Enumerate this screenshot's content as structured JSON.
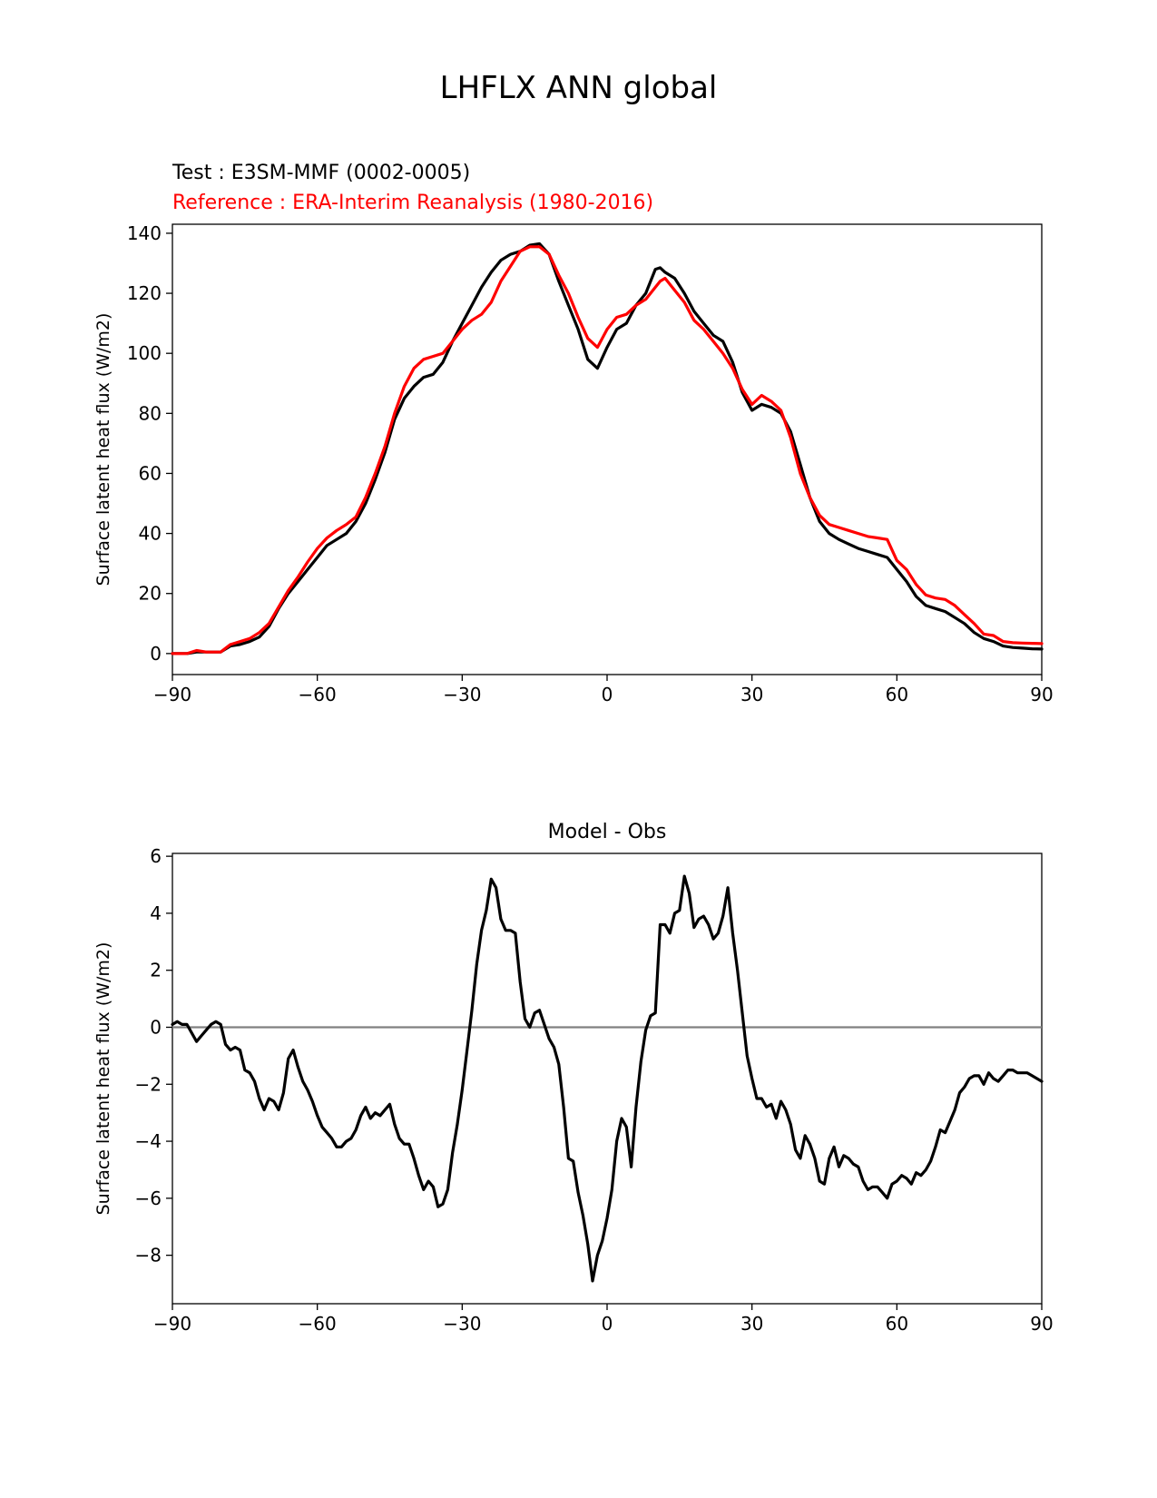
{
  "figure": {
    "suptitle": "LHFLX ANN global",
    "test_label": "Test : E3SM-MMF (0002-0005)",
    "ref_label": "Reference : ERA-Interim Reanalysis (1980-2016)",
    "diff_title": "Model - Obs",
    "colors": {
      "test": "#000000",
      "reference": "#ff0000",
      "zero_line": "#808080"
    }
  },
  "chart_data": [
    {
      "type": "line",
      "title": "",
      "xlabel": "",
      "ylabel": "Surface latent heat flux (W/m2)",
      "xlim": [
        -90,
        90
      ],
      "ylim": [
        -7,
        143
      ],
      "xticks": [
        -90,
        -60,
        -30,
        0,
        30,
        60,
        90
      ],
      "xtick_labels": [
        "−90",
        "−60",
        "−30",
        "0",
        "30",
        "60",
        "90"
      ],
      "yticks": [
        0,
        20,
        40,
        60,
        80,
        100,
        120,
        140
      ],
      "ytick_labels": [
        "0",
        "20",
        "40",
        "60",
        "80",
        "100",
        "120",
        "140"
      ],
      "series": [
        {
          "name": "Test : E3SM-MMF (0002-0005)",
          "color": "#000000",
          "x": [
            -90,
            -87,
            -85,
            -83,
            -80,
            -78,
            -76,
            -74,
            -72,
            -70,
            -68,
            -66,
            -64,
            -62,
            -60,
            -58,
            -56,
            -54,
            -52,
            -50,
            -48,
            -46,
            -44,
            -42,
            -40,
            -38,
            -36,
            -34,
            -32,
            -30,
            -28,
            -26,
            -24,
            -22,
            -20,
            -18,
            -16,
            -14,
            -12,
            -10,
            -8,
            -6,
            -4,
            -2,
            0,
            2,
            4,
            6,
            8,
            10,
            11,
            12,
            14,
            16,
            18,
            20,
            22,
            24,
            26,
            28,
            30,
            32,
            34,
            36,
            38,
            40,
            42,
            44,
            46,
            48,
            50,
            52,
            54,
            56,
            58,
            60,
            62,
            64,
            66,
            68,
            70,
            72,
            74,
            76,
            78,
            80,
            82,
            84,
            86,
            88,
            90
          ],
          "values": [
            0,
            0,
            0.5,
            0.5,
            0.5,
            2.5,
            3,
            4,
            5.5,
            9,
            15,
            20,
            24,
            28,
            32,
            36,
            38,
            40,
            44,
            50,
            58,
            67,
            78,
            85,
            89,
            92,
            93,
            97,
            104,
            110,
            116,
            122,
            127,
            131,
            133,
            134,
            136,
            136.5,
            133,
            124,
            116,
            108,
            98,
            95,
            102,
            108,
            110,
            116,
            120,
            128,
            128.5,
            127,
            125,
            120,
            114,
            110,
            106,
            104,
            97,
            87,
            81,
            83,
            82,
            80,
            74,
            63,
            52,
            44,
            40,
            38,
            36.5,
            35,
            34,
            33,
            32,
            28,
            24,
            19,
            16,
            15,
            14,
            12,
            10,
            7,
            5,
            4,
            2.5,
            2,
            1.8,
            1.6,
            1.5
          ]
        },
        {
          "name": "Reference : ERA-Interim Reanalysis (1980-2016)",
          "color": "#ff0000",
          "x": [
            -90,
            -87,
            -85,
            -83,
            -80,
            -78,
            -76,
            -74,
            -72,
            -70,
            -68,
            -66,
            -64,
            -62,
            -60,
            -58,
            -56,
            -54,
            -52,
            -50,
            -48,
            -46,
            -44,
            -42,
            -40,
            -38,
            -36,
            -34,
            -32,
            -30,
            -28,
            -26,
            -24,
            -22,
            -20,
            -18,
            -16,
            -14,
            -12,
            -10,
            -8,
            -6,
            -4,
            -2,
            0,
            2,
            4,
            6,
            8,
            10,
            11,
            12,
            14,
            16,
            18,
            20,
            22,
            24,
            26,
            28,
            30,
            32,
            34,
            36,
            38,
            40,
            42,
            44,
            46,
            48,
            50,
            52,
            54,
            56,
            58,
            60,
            62,
            64,
            66,
            68,
            70,
            72,
            74,
            76,
            78,
            80,
            82,
            84,
            86,
            88,
            90
          ],
          "values": [
            0,
            0,
            1,
            0.5,
            0.5,
            3,
            4,
            5,
            7,
            10,
            15.5,
            21,
            25.5,
            30.5,
            35,
            38.5,
            41,
            43,
            45.5,
            52,
            60,
            69,
            80,
            89,
            95,
            98,
            99,
            100,
            104,
            108,
            111,
            113,
            117,
            124,
            129,
            134,
            135.5,
            135.5,
            133,
            126,
            120,
            112,
            105,
            102,
            108,
            112,
            113,
            116,
            118,
            122,
            124,
            125,
            121,
            117,
            111,
            108,
            104,
            100,
            95,
            88,
            83,
            86,
            84,
            81,
            72,
            60,
            52,
            46,
            43,
            42,
            41,
            40,
            39,
            38.5,
            38,
            31,
            28,
            23,
            19.5,
            18.5,
            18,
            16,
            13,
            10,
            6.5,
            6,
            4,
            3.6,
            3.5,
            3.4,
            3.3
          ]
        }
      ]
    },
    {
      "type": "line",
      "title": "Model - Obs",
      "xlabel": "",
      "ylabel": "Surface latent heat flux (W/m2)",
      "xlim": [
        -90,
        90
      ],
      "ylim": [
        -9.7,
        6.1
      ],
      "xticks": [
        -90,
        -60,
        -30,
        0,
        30,
        60,
        90
      ],
      "xtick_labels": [
        "−90",
        "−60",
        "−30",
        "0",
        "30",
        "60",
        "90"
      ],
      "yticks": [
        -8,
        -6,
        -4,
        -2,
        0,
        2,
        4,
        6
      ],
      "ytick_labels": [
        "−8",
        "−6",
        "−4",
        "−2",
        "0",
        "2",
        "4",
        "6"
      ],
      "reference_line": 0,
      "series": [
        {
          "name": "Model - Obs",
          "color": "#000000",
          "x": [
            -90,
            -89,
            -88,
            -87,
            -86,
            -85,
            -84,
            -83,
            -82,
            -81,
            -80,
            -79,
            -78,
            -77,
            -76,
            -75,
            -74,
            -73,
            -72,
            -71,
            -70,
            -69,
            -68,
            -67,
            -66,
            -65,
            -64,
            -63,
            -62,
            -61,
            -60,
            -59,
            -58,
            -57,
            -56,
            -55,
            -54,
            -53,
            -52,
            -51,
            -50,
            -49,
            -48,
            -47,
            -46,
            -45,
            -44,
            -43,
            -42,
            -41,
            -40,
            -39,
            -38,
            -37,
            -36,
            -35,
            -34,
            -33,
            -32,
            -31,
            -30,
            -29,
            -28,
            -27,
            -26,
            -25,
            -24,
            -23,
            -22,
            -21,
            -20,
            -19,
            -18,
            -17,
            -16,
            -15,
            -14,
            -13,
            -12,
            -11,
            -10,
            -9,
            -8,
            -7,
            -6,
            -5,
            -4,
            -3,
            -2,
            -1,
            0,
            1,
            2,
            3,
            4,
            5,
            6,
            7,
            8,
            9,
            10,
            11,
            12,
            13,
            14,
            15,
            16,
            17,
            18,
            19,
            20,
            21,
            22,
            23,
            24,
            25,
            26,
            27,
            28,
            29,
            30,
            31,
            32,
            33,
            34,
            35,
            36,
            37,
            38,
            39,
            40,
            41,
            42,
            43,
            44,
            45,
            46,
            47,
            48,
            49,
            50,
            51,
            52,
            53,
            54,
            55,
            56,
            57,
            58,
            59,
            60,
            61,
            62,
            63,
            64,
            65,
            66,
            67,
            68,
            69,
            70,
            71,
            72,
            73,
            74,
            75,
            76,
            77,
            78,
            79,
            80,
            81,
            82,
            83,
            84,
            85,
            86,
            87,
            88,
            89,
            90
          ],
          "values": [
            0.1,
            0.2,
            0.1,
            0.1,
            -0.2,
            -0.5,
            -0.3,
            -0.1,
            0.1,
            0.2,
            0.1,
            -0.6,
            -0.8,
            -0.7,
            -0.8,
            -1.5,
            -1.6,
            -1.9,
            -2.5,
            -2.9,
            -2.5,
            -2.6,
            -2.9,
            -2.3,
            -1.1,
            -0.8,
            -1.4,
            -1.9,
            -2.2,
            -2.6,
            -3.1,
            -3.5,
            -3.7,
            -3.9,
            -4.2,
            -4.2,
            -4.0,
            -3.9,
            -3.6,
            -3.1,
            -2.8,
            -3.2,
            -3.0,
            -3.1,
            -2.9,
            -2.7,
            -3.4,
            -3.9,
            -4.1,
            -4.1,
            -4.6,
            -5.2,
            -5.7,
            -5.4,
            -5.6,
            -6.3,
            -6.2,
            -5.7,
            -4.4,
            -3.4,
            -2.2,
            -0.8,
            0.6,
            2.2,
            3.4,
            4.1,
            5.2,
            4.9,
            3.8,
            3.4,
            3.4,
            3.3,
            1.6,
            0.3,
            0.0,
            0.5,
            0.6,
            0.1,
            -0.4,
            -0.7,
            -1.3,
            -2.8,
            -4.6,
            -4.7,
            -5.8,
            -6.6,
            -7.6,
            -8.9,
            -8.0,
            -7.5,
            -6.7,
            -5.7,
            -4.0,
            -3.2,
            -3.5,
            -4.9,
            -2.8,
            -1.2,
            -0.1,
            0.4,
            0.5,
            3.6,
            3.6,
            3.3,
            4.0,
            4.1,
            5.3,
            4.7,
            3.5,
            3.8,
            3.9,
            3.6,
            3.1,
            3.3,
            3.9,
            4.9,
            3.3,
            2.0,
            0.5,
            -1.0,
            -1.8,
            -2.5,
            -2.5,
            -2.8,
            -2.7,
            -3.2,
            -2.6,
            -2.9,
            -3.4,
            -4.3,
            -4.6,
            -3.8,
            -4.1,
            -4.6,
            -5.4,
            -5.5,
            -4.6,
            -4.2,
            -4.9,
            -4.5,
            -4.6,
            -4.8,
            -4.9,
            -5.4,
            -5.7,
            -5.6,
            -5.6,
            -5.8,
            -6.0,
            -5.5,
            -5.4,
            -5.2,
            -5.3,
            -5.5,
            -5.1,
            -5.2,
            -5.0,
            -4.7,
            -4.2,
            -3.6,
            -3.7,
            -3.3,
            -2.9,
            -2.3,
            -2.1,
            -1.8,
            -1.7,
            -1.7,
            -2.0,
            -1.6,
            -1.8,
            -1.9,
            -1.7,
            -1.5,
            -1.5,
            -1.6,
            -1.6,
            -1.6,
            -1.7,
            -1.8,
            -1.9
          ]
        }
      ]
    }
  ]
}
